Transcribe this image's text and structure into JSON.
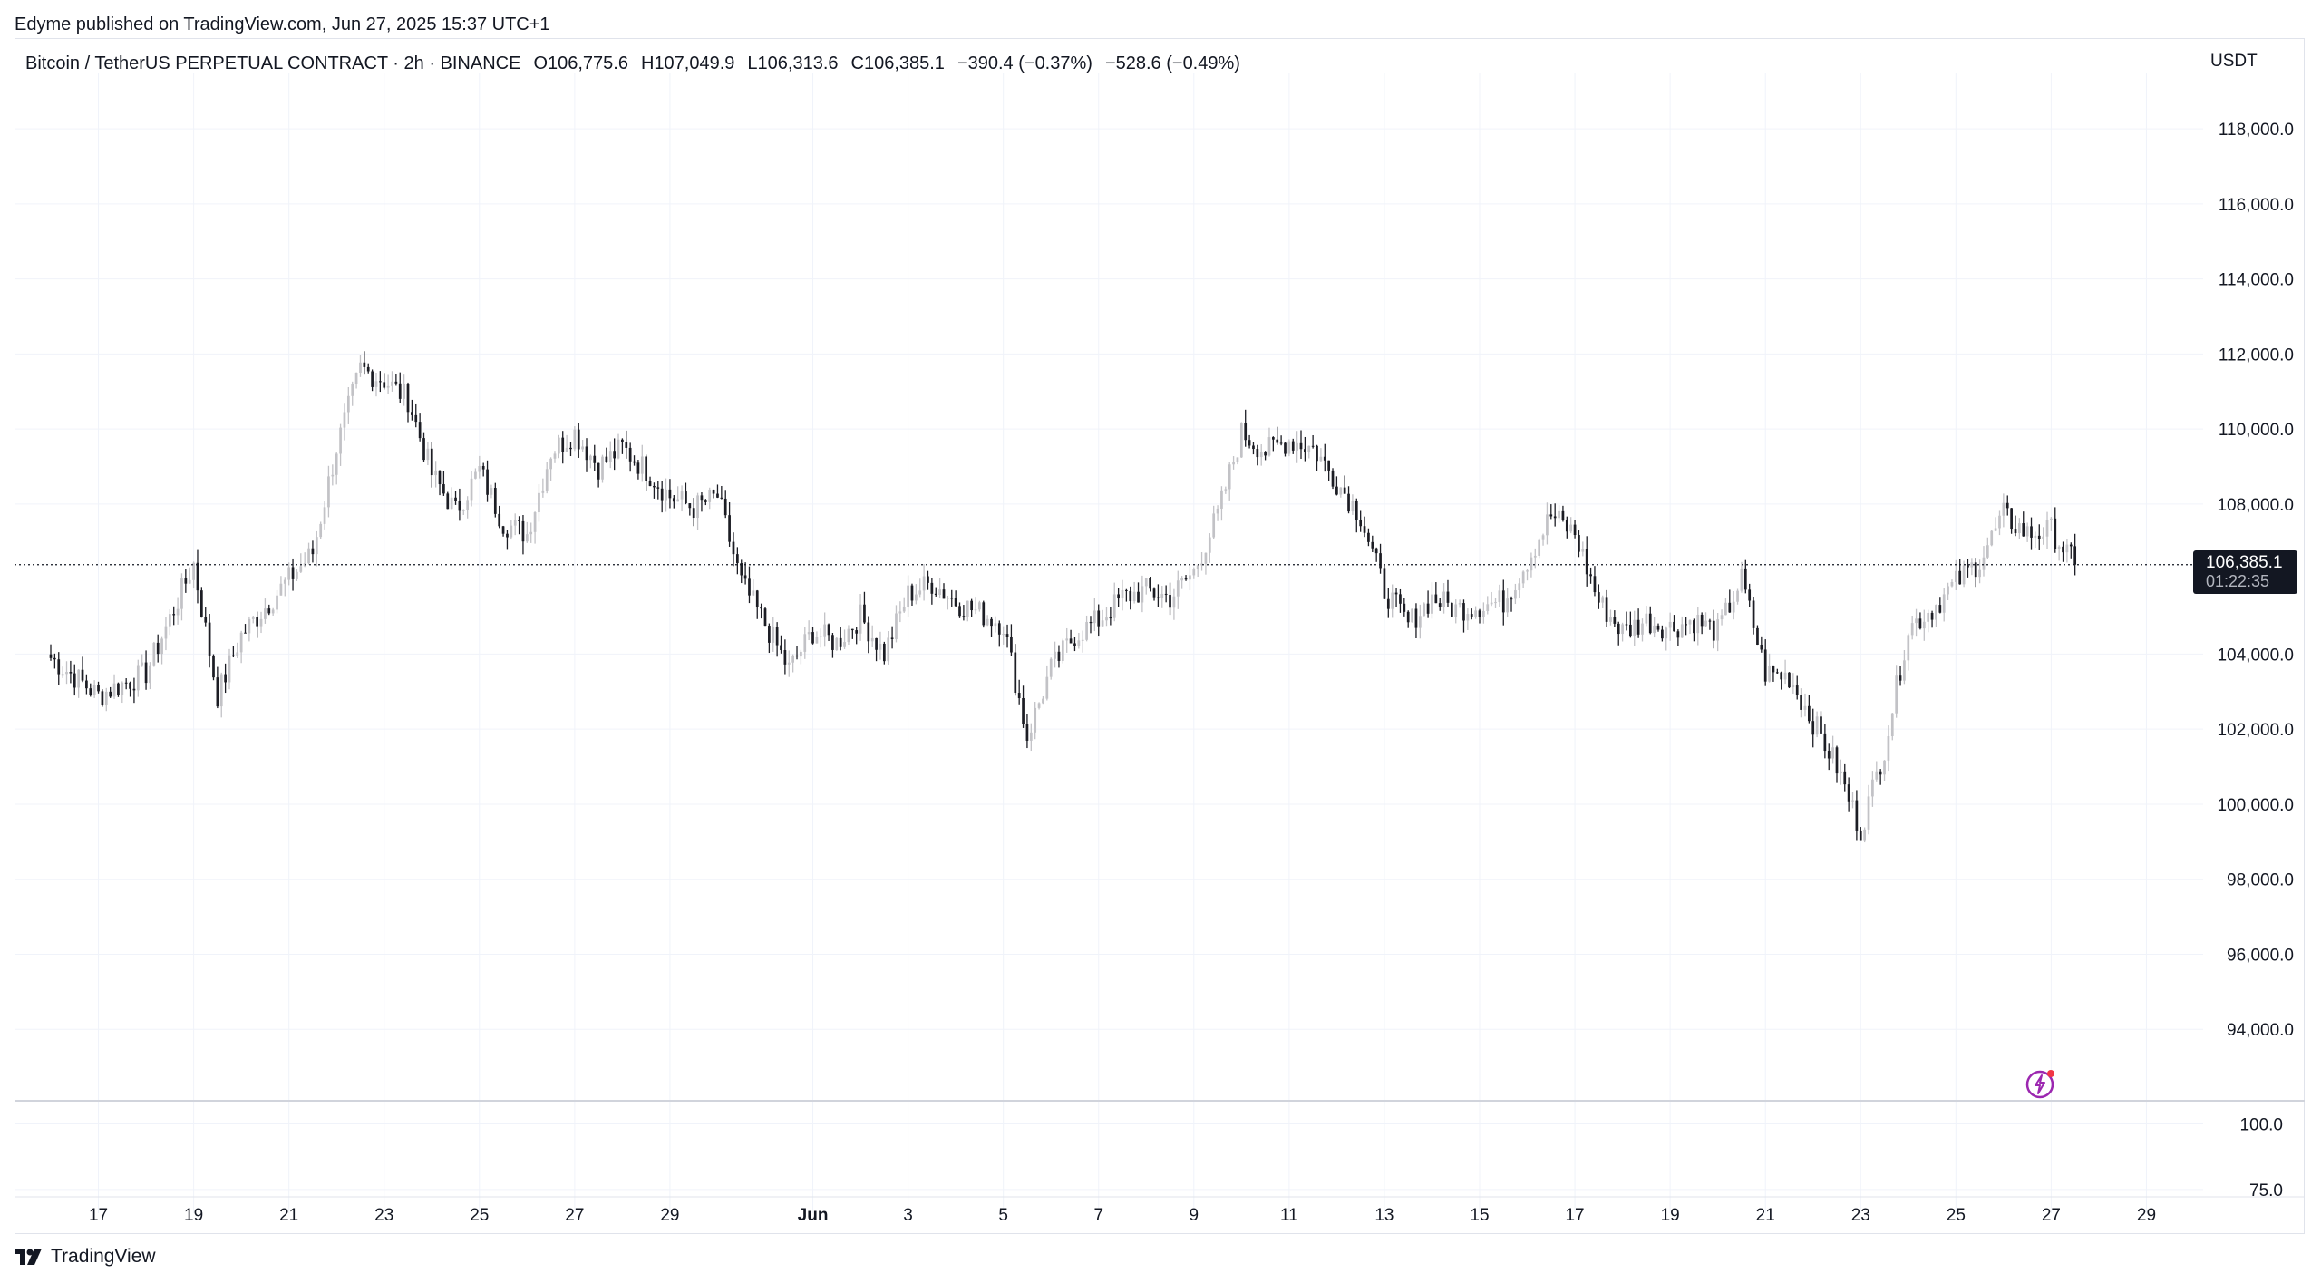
{
  "publish_line": "Edyme published on TradingView.com, Jun 27, 2025 15:37 UTC+1",
  "legend": {
    "symbol": "Bitcoin / TetherUS PERPETUAL CONTRACT · 2h · BINANCE",
    "open": "O106,775.6",
    "high": "H107,049.9",
    "low": "L106,313.6",
    "close": "C106,385.1",
    "change": "−390.4 (−0.37%)",
    "extra_change": "−528.6 (−0.49%)"
  },
  "unit": "USDT",
  "last_price": {
    "value": "106,385.1",
    "countdown": "01:22:35"
  },
  "brand": "TradingView",
  "colors": {
    "up_candle": "#c2c2c6",
    "down_candle": "#1c1d24",
    "grid": "#f0f3fa",
    "text": "#131722",
    "accent": "#9c27b0",
    "alert_dot": "#f23645"
  },
  "icons": [
    "tradingview-logo-icon",
    "lightning-bolt-icon"
  ],
  "chart_data": {
    "type": "candlestick",
    "title": "",
    "timeframe": "2h",
    "ylim": [
      92000,
      119500
    ],
    "y_ticks": [
      "118,000.0",
      "116,000.0",
      "114,000.0",
      "112,000.0",
      "110,000.0",
      "108,000.0",
      "104,000.0",
      "102,000.0",
      "100,000.0",
      "98,000.0",
      "96,000.0",
      "94,000.0"
    ],
    "y_tick_values": [
      118000,
      116000,
      114000,
      112000,
      110000,
      108000,
      104000,
      102000,
      100000,
      98000,
      96000,
      94000
    ],
    "x_ticks": [
      "17",
      "19",
      "21",
      "23",
      "25",
      "27",
      "29",
      "Jun",
      "3",
      "5",
      "7",
      "9",
      "11",
      "13",
      "15",
      "17",
      "19",
      "21",
      "23",
      "25",
      "27",
      "29"
    ],
    "x_tick_dates": [
      "2025-05-17",
      "2025-05-19",
      "2025-05-21",
      "2025-05-23",
      "2025-05-25",
      "2025-05-27",
      "2025-05-29",
      "2025-06-01",
      "2025-06-03",
      "2025-06-05",
      "2025-06-07",
      "2025-06-09",
      "2025-06-11",
      "2025-06-13",
      "2025-06-15",
      "2025-06-17",
      "2025-06-19",
      "2025-06-21",
      "2025-06-23",
      "2025-06-25",
      "2025-06-27",
      "2025-06-29"
    ],
    "x_range": [
      "2025-05-16",
      "2025-06-30"
    ],
    "last_price": 106385.1,
    "price_path": [
      [
        "2025-05-16",
        103900
      ],
      [
        "2025-05-17",
        102900
      ],
      [
        "2025-05-18",
        103500
      ],
      [
        "2025-05-19",
        106400
      ],
      [
        "2025-05-19 12:00",
        102900
      ],
      [
        "2025-05-20",
        104500
      ],
      [
        "2025-05-21",
        106000
      ],
      [
        "2025-05-21 12:00",
        106700
      ],
      [
        "2025-05-22",
        109500
      ],
      [
        "2025-05-22 12:00",
        111600
      ],
      [
        "2025-05-23",
        111300
      ],
      [
        "2025-05-23 12:00",
        110800
      ],
      [
        "2025-05-24",
        108800
      ],
      [
        "2025-05-24 12:00",
        107800
      ],
      [
        "2025-05-25",
        108900
      ],
      [
        "2025-05-25 12:00",
        107500
      ],
      [
        "2025-05-26",
        107200
      ],
      [
        "2025-05-26 12:00",
        109400
      ],
      [
        "2025-05-27",
        109900
      ],
      [
        "2025-05-27 12:00",
        109000
      ],
      [
        "2025-05-28",
        109500
      ],
      [
        "2025-05-28 12:00",
        108900
      ],
      [
        "2025-05-29",
        108200
      ],
      [
        "2025-05-29 12:00",
        107900
      ],
      [
        "2025-05-30",
        108200
      ],
      [
        "2025-05-30 12:00",
        105900
      ],
      [
        "2025-05-31",
        104800
      ],
      [
        "2025-05-31 12:00",
        103600
      ],
      [
        "2025-06-01",
        104600
      ],
      [
        "2025-06-01 12:00",
        104300
      ],
      [
        "2025-06-02",
        105000
      ],
      [
        "2025-06-02 12:00",
        104000
      ],
      [
        "2025-06-03",
        105600
      ],
      [
        "2025-06-03 12:00",
        105900
      ],
      [
        "2025-06-04",
        105400
      ],
      [
        "2025-06-04 12:00",
        105100
      ],
      [
        "2025-06-05",
        104800
      ],
      [
        "2025-06-05 12:00",
        101800
      ],
      [
        "2025-06-06",
        103600
      ],
      [
        "2025-06-06 12:00",
        104500
      ],
      [
        "2025-06-07",
        104900
      ],
      [
        "2025-06-07 12:00",
        105500
      ],
      [
        "2025-06-08",
        105700
      ],
      [
        "2025-06-08 12:00",
        105500
      ],
      [
        "2025-06-09",
        106200
      ],
      [
        "2025-06-09 12:00",
        107700
      ],
      [
        "2025-06-10",
        109900
      ],
      [
        "2025-06-10 12:00",
        109400
      ],
      [
        "2025-06-11",
        109700
      ],
      [
        "2025-06-11 12:00",
        109500
      ],
      [
        "2025-06-12",
        108600
      ],
      [
        "2025-06-12 12:00",
        107700
      ],
      [
        "2025-06-13",
        105700
      ],
      [
        "2025-06-13 12:00",
        104800
      ],
      [
        "2025-06-14",
        105500
      ],
      [
        "2025-06-14 12:00",
        105200
      ],
      [
        "2025-06-15",
        105300
      ],
      [
        "2025-06-15 12:00",
        105400
      ],
      [
        "2025-06-16",
        106500
      ],
      [
        "2025-06-16 12:00",
        107700
      ],
      [
        "2025-06-17",
        107200
      ],
      [
        "2025-06-17 12:00",
        105400
      ],
      [
        "2025-06-18",
        104600
      ],
      [
        "2025-06-18 12:00",
        104900
      ],
      [
        "2025-06-19",
        104700
      ],
      [
        "2025-06-19 12:00",
        104900
      ],
      [
        "2025-06-20",
        104600
      ],
      [
        "2025-06-20 12:00",
        106000
      ],
      [
        "2025-06-21",
        103500
      ],
      [
        "2025-06-21 12:00",
        103400
      ],
      [
        "2025-06-22",
        102200
      ],
      [
        "2025-06-22 12:00",
        101000
      ],
      [
        "2025-06-23",
        99300
      ],
      [
        "2025-06-23 12:00",
        101500
      ],
      [
        "2025-06-24",
        104700
      ],
      [
        "2025-06-24 12:00",
        105200
      ],
      [
        "2025-06-25",
        105900
      ],
      [
        "2025-06-25 12:00",
        106500
      ],
      [
        "2025-06-26",
        107700
      ],
      [
        "2025-06-26 12:00",
        107200
      ],
      [
        "2025-06-27",
        107300
      ],
      [
        "2025-06-27 12:00",
        106385
      ]
    ],
    "volume_pane": {
      "y_ticks": [
        "100.0",
        "75.0"
      ],
      "y_tick_values": [
        100,
        75
      ],
      "ylim": [
        66,
        105
      ]
    }
  }
}
